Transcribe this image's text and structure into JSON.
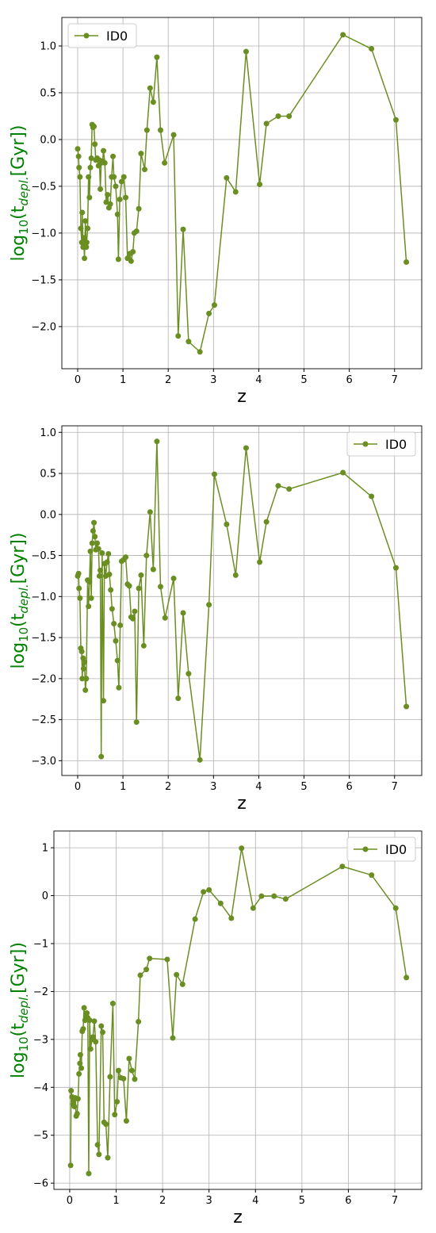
{
  "chart_data": [
    {
      "type": "line",
      "xlabel": "z",
      "ylabel": [
        "log",
        "10",
        "(t",
        "depl.",
        "[Gyr])"
      ],
      "x": [
        0.0,
        0.02,
        0.03,
        0.05,
        0.07,
        0.09,
        0.1,
        0.12,
        0.13,
        0.15,
        0.17,
        0.19,
        0.2,
        0.22,
        0.24,
        0.26,
        0.28,
        0.3,
        0.32,
        0.34,
        0.36,
        0.38,
        0.4,
        0.43,
        0.46,
        0.48,
        0.5,
        0.52,
        0.55,
        0.57,
        0.6,
        0.63,
        0.66,
        0.69,
        0.72,
        0.75,
        0.78,
        0.8,
        0.84,
        0.88,
        0.9,
        0.93,
        0.97,
        1.02,
        1.06,
        1.1,
        1.15,
        1.18,
        1.22,
        1.25,
        1.3,
        1.35,
        1.4,
        1.48,
        1.53,
        1.6,
        1.67,
        1.75,
        1.83,
        1.92,
        2.12,
        2.22,
        2.33,
        2.45,
        2.7,
        2.9,
        3.02,
        3.29,
        3.49,
        3.72,
        4.02,
        4.17,
        4.43,
        4.67,
        5.86,
        6.49,
        7.03,
        7.26
      ],
      "series": [
        {
          "name": "ID0",
          "color": "#6b8e23",
          "values": [
            -0.1,
            -0.18,
            -0.3,
            -0.4,
            -0.95,
            -1.1,
            -0.78,
            -1.15,
            -1.05,
            -1.27,
            -0.87,
            -1.15,
            -1.1,
            -0.95,
            -0.4,
            -0.62,
            -0.3,
            -0.2,
            0.16,
            0.13,
            0.14,
            -0.05,
            -0.22,
            -0.2,
            -0.28,
            -0.22,
            -0.53,
            -0.25,
            -0.23,
            -0.12,
            -0.25,
            -0.67,
            -0.59,
            -0.73,
            -0.69,
            -0.4,
            -0.18,
            -0.4,
            -0.5,
            -0.8,
            -1.28,
            -0.64,
            -0.45,
            -0.4,
            -0.62,
            -1.27,
            -1.22,
            -1.3,
            -1.2,
            -1.0,
            -0.98,
            -0.74,
            -0.15,
            -0.32,
            0.1,
            0.55,
            0.4,
            0.88,
            0.1,
            -0.25,
            0.05,
            -2.1,
            -0.96,
            -2.16,
            -2.27,
            -1.86,
            -1.77,
            -0.41,
            -0.56,
            0.94,
            -0.48,
            0.17,
            0.25,
            0.25,
            1.12,
            0.97,
            0.21,
            -1.31
          ]
        }
      ],
      "xlim": [
        -0.35,
        7.6
      ],
      "xticks": [
        0,
        1,
        2,
        3,
        4,
        5,
        6,
        7
      ],
      "ylim": [
        -2.45,
        1.305
      ],
      "yticks": [
        {
          "value": -2.0,
          "label": "−2.0"
        },
        {
          "value": -1.5,
          "label": "−1.5"
        },
        {
          "value": -1.0,
          "label": "−1.0"
        },
        {
          "value": -0.5,
          "label": "−0.5"
        },
        {
          "value": 0.0,
          "label": "0.0"
        },
        0.5,
        {
          "value": 1.0,
          "label": "1.0"
        }
      ],
      "grid": true,
      "legend": "upper left"
    },
    {
      "type": "line",
      "xlabel": "z",
      "ylabel": [
        "log",
        "10",
        "(t",
        "depl.",
        "[Gyr])"
      ],
      "x": [
        0.0,
        0.02,
        0.03,
        0.05,
        0.07,
        0.09,
        0.1,
        0.12,
        0.13,
        0.15,
        0.17,
        0.19,
        0.22,
        0.24,
        0.26,
        0.28,
        0.3,
        0.32,
        0.34,
        0.36,
        0.38,
        0.4,
        0.43,
        0.46,
        0.48,
        0.5,
        0.52,
        0.54,
        0.57,
        0.59,
        0.62,
        0.65,
        0.68,
        0.7,
        0.73,
        0.76,
        0.8,
        0.84,
        0.88,
        0.91,
        0.94,
        0.97,
        1.02,
        1.06,
        1.1,
        1.14,
        1.18,
        1.22,
        1.26,
        1.3,
        1.35,
        1.4,
        1.46,
        1.52,
        1.6,
        1.67,
        1.75,
        1.83,
        1.93,
        2.12,
        2.22,
        2.33,
        2.45,
        2.7,
        2.9,
        3.02,
        3.29,
        3.49,
        3.72,
        4.02,
        4.17,
        4.43,
        4.67,
        5.86,
        6.49,
        7.03,
        7.26
      ],
      "series": [
        {
          "name": "ID0",
          "color": "#6b8e23",
          "values": [
            -0.75,
            -0.72,
            -0.9,
            -1.02,
            -1.63,
            -1.67,
            -2.0,
            -1.75,
            -1.88,
            -1.8,
            -2.14,
            -2.0,
            -0.8,
            -1.12,
            -0.82,
            -0.45,
            -1.02,
            -0.35,
            -0.2,
            -0.1,
            -0.27,
            -0.43,
            -0.35,
            -0.42,
            -0.75,
            -0.68,
            -2.95,
            -0.47,
            -2.27,
            -0.6,
            -0.75,
            -0.58,
            -0.48,
            -0.73,
            -0.92,
            -1.15,
            -1.33,
            -1.54,
            -1.78,
            -2.11,
            -1.35,
            -0.57,
            -0.55,
            -0.52,
            -0.85,
            -0.87,
            -1.25,
            -1.27,
            -1.18,
            -2.53,
            -0.9,
            -0.74,
            -1.6,
            -0.5,
            0.03,
            -0.67,
            0.89,
            -0.88,
            -1.26,
            -0.78,
            -2.24,
            -1.2,
            -1.94,
            -2.99,
            -1.1,
            0.49,
            -0.12,
            -0.74,
            0.81,
            -0.58,
            -0.09,
            0.35,
            0.31,
            0.51,
            0.22,
            -0.65,
            -2.34
          ]
        }
      ],
      "xlim": [
        -0.35,
        7.6
      ],
      "xticks": [
        0,
        1,
        2,
        3,
        4,
        5,
        6,
        7
      ],
      "ylim": [
        -3.18,
        1.08
      ],
      "yticks": [
        {
          "value": -3.0,
          "label": "−3.0"
        },
        {
          "value": -2.5,
          "label": "−2.5"
        },
        {
          "value": -2.0,
          "label": "−2.0"
        },
        {
          "value": -1.5,
          "label": "−1.5"
        },
        {
          "value": -1.0,
          "label": "−1.0"
        },
        {
          "value": -0.5,
          "label": "−0.5"
        },
        {
          "value": 0.0,
          "label": "0.0"
        },
        0.5,
        {
          "value": 1.0,
          "label": "1.0"
        }
      ],
      "grid": true,
      "legend": "upper right"
    },
    {
      "type": "line",
      "xlabel": "z",
      "ylabel": [
        "log",
        "10",
        "(t",
        "depl.",
        "[Gyr])"
      ],
      "x": [
        0.02,
        0.03,
        0.05,
        0.07,
        0.09,
        0.1,
        0.12,
        0.14,
        0.16,
        0.18,
        0.2,
        0.22,
        0.23,
        0.25,
        0.27,
        0.29,
        0.31,
        0.33,
        0.35,
        0.37,
        0.39,
        0.41,
        0.43,
        0.45,
        0.48,
        0.5,
        0.53,
        0.56,
        0.6,
        0.63,
        0.68,
        0.71,
        0.74,
        0.78,
        0.82,
        0.87,
        0.93,
        0.97,
        1.02,
        1.05,
        1.1,
        1.16,
        1.22,
        1.28,
        1.34,
        1.4,
        1.48,
        1.52,
        1.65,
        1.72,
        2.1,
        2.22,
        2.3,
        2.43,
        2.7,
        2.88,
        3.0,
        3.25,
        3.48,
        3.7,
        3.95,
        4.13,
        4.4,
        4.65,
        5.87,
        6.5,
        7.02,
        7.25
      ],
      "series": [
        {
          "name": "ID0",
          "color": "#6b8e23",
          "values": [
            -5.63,
            -4.07,
            -4.2,
            -4.35,
            -4.26,
            -4.4,
            -4.22,
            -4.6,
            -4.55,
            -4.24,
            -3.72,
            -3.5,
            -3.32,
            -3.6,
            -2.83,
            -2.78,
            -2.34,
            -2.6,
            -2.48,
            -2.45,
            -2.55,
            -5.8,
            -2.6,
            -3.2,
            -3.0,
            -2.95,
            -2.62,
            -3.05,
            -5.2,
            -5.4,
            -2.72,
            -2.85,
            -4.73,
            -4.77,
            -5.47,
            -3.78,
            -2.25,
            -4.57,
            -4.3,
            -3.65,
            -3.8,
            -3.82,
            -4.7,
            -3.4,
            -3.65,
            -3.83,
            -2.63,
            -1.66,
            -1.54,
            -1.31,
            -1.33,
            -2.97,
            -1.65,
            -1.85,
            -0.49,
            0.08,
            0.12,
            -0.16,
            -0.47,
            0.99,
            -0.26,
            -0.01,
            -0.01,
            -0.07,
            0.61,
            0.43,
            -0.26,
            -1.71
          ]
        }
      ],
      "xlim": [
        -0.34,
        7.58
      ],
      "xticks": [
        0,
        1,
        2,
        3,
        4,
        5,
        6,
        7
      ],
      "ylim": [
        -6.13,
        1.35
      ],
      "yticks": [
        {
          "value": -6,
          "label": "−6"
        },
        {
          "value": -5,
          "label": "−5"
        },
        {
          "value": -4,
          "label": "−4"
        },
        {
          "value": -3,
          "label": "−3"
        },
        {
          "value": -2,
          "label": "−2"
        },
        {
          "value": -1,
          "label": "−1"
        },
        0,
        1
      ],
      "grid": true,
      "legend": "upper right"
    }
  ]
}
